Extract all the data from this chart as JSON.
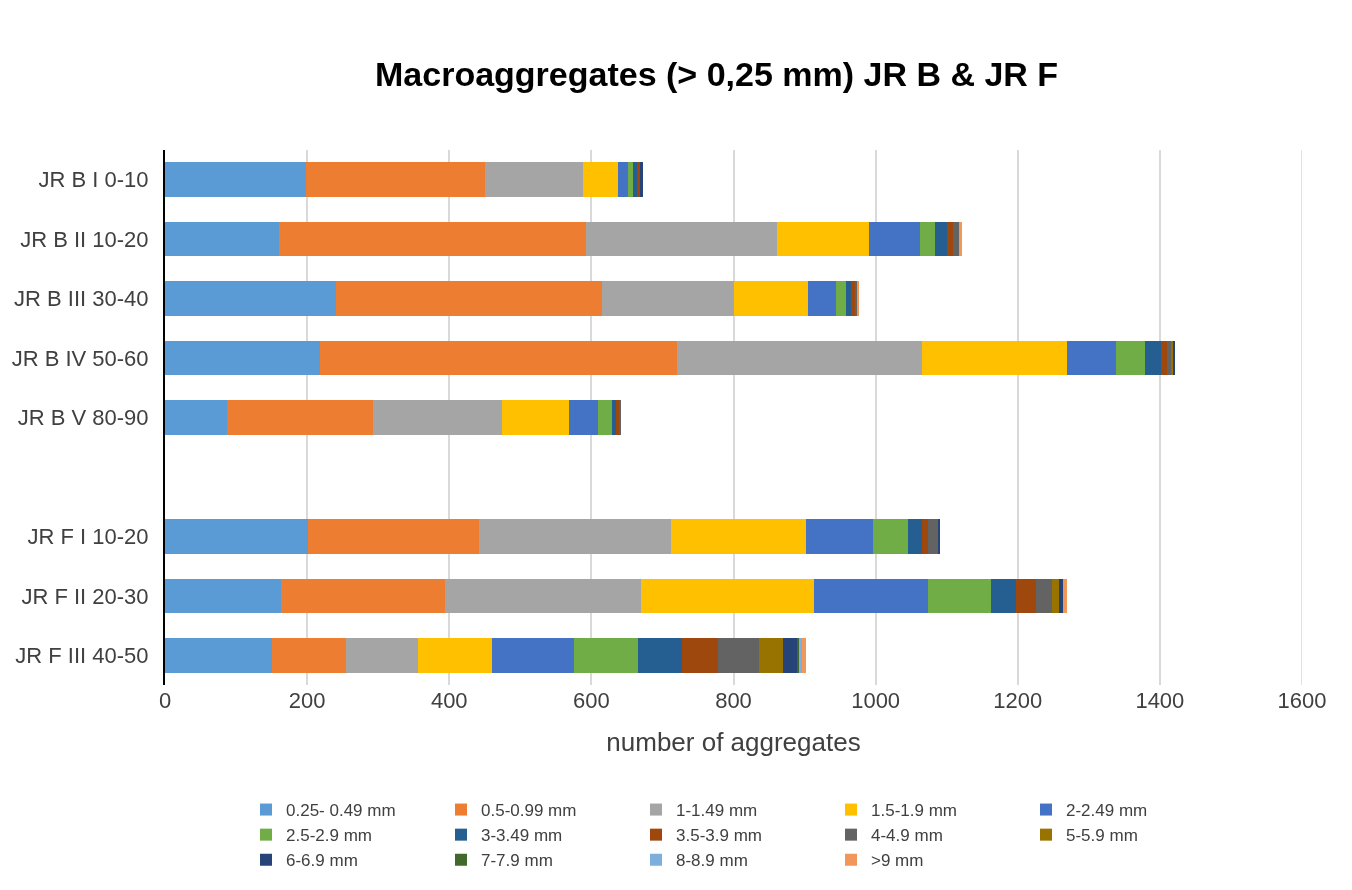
{
  "chart_data": {
    "type": "bar",
    "orientation": "horizontal",
    "stacked": true,
    "title": "Macroaggregates (> 0,25 mm) JR B & JR F",
    "xlabel": "number of aggregates",
    "categories": [
      "JR B I 0-10",
      "JR B II 10-20",
      "JR B III 30-40",
      "JR B IV 50-60",
      "JR B V 80-90",
      null,
      "JR F I 10-20",
      "JR F II 20-30",
      "JR F III 40-50"
    ],
    "xlim": [
      0,
      1600
    ],
    "xticks": [
      0,
      200,
      400,
      600,
      800,
      1000,
      1200,
      1400,
      1600
    ],
    "grid": "x",
    "legend": "bottom",
    "series": [
      {
        "name": "0.25- 0.49 mm",
        "color": "#5b9bd5",
        "values": [
          199,
          160,
          240,
          218,
          87,
          null,
          201,
          163,
          151
        ]
      },
      {
        "name": "0.5-0.99 mm",
        "color": "#ed7d31",
        "values": [
          251,
          433,
          375,
          502,
          205,
          null,
          241,
          231,
          103
        ]
      },
      {
        "name": "1-1.49 mm",
        "color": "#a5a5a5",
        "values": [
          138,
          268,
          185,
          345,
          182,
          null,
          270,
          276,
          102
        ]
      },
      {
        "name": "1.5-1.9 mm",
        "color": "#ffc000",
        "values": [
          49,
          129,
          105,
          205,
          94,
          null,
          190,
          243,
          104
        ]
      },
      {
        "name": "2-2.49 mm",
        "color": "#4472c4",
        "values": [
          14,
          72,
          39,
          68,
          42,
          null,
          94,
          161,
          116
        ]
      },
      {
        "name": "2.5-2.9 mm",
        "color": "#70ad47",
        "values": [
          8,
          22,
          14,
          41,
          19,
          null,
          50,
          88,
          89
        ]
      },
      {
        "name": "3-3.49 mm",
        "color": "#255e91",
        "values": [
          5,
          17,
          8,
          23,
          5,
          null,
          19,
          36,
          63
        ]
      },
      {
        "name": "3.5-3.9 mm",
        "color": "#9e480e",
        "values": [
          4,
          8,
          6,
          8,
          6,
          null,
          9,
          28,
          50
        ]
      },
      {
        "name": "4-4.9 mm",
        "color": "#636363",
        "values": [
          0,
          9,
          2,
          5,
          2,
          null,
          14,
          22,
          58
        ]
      },
      {
        "name": "5-5.9 mm",
        "color": "#997300",
        "values": [
          0,
          0,
          0,
          3,
          0,
          null,
          0,
          10,
          33
        ]
      },
      {
        "name": "6-6.9 mm",
        "color": "#264478",
        "values": [
          4,
          0,
          0,
          3,
          0,
          null,
          2,
          6,
          20
        ]
      },
      {
        "name": "7-7.9 mm",
        "color": "#43682b",
        "values": [
          0,
          0,
          0,
          0,
          0,
          null,
          0,
          0,
          3
        ]
      },
      {
        "name": "8-8.9 mm",
        "color": "#7cafdd",
        "values": [
          0,
          0,
          0,
          0,
          0,
          null,
          0,
          0,
          4
        ]
      },
      {
        "name": ">9 mm",
        "color": "#f1975a",
        "values": [
          0,
          4,
          2,
          0,
          0,
          null,
          0,
          5,
          6
        ]
      }
    ]
  }
}
